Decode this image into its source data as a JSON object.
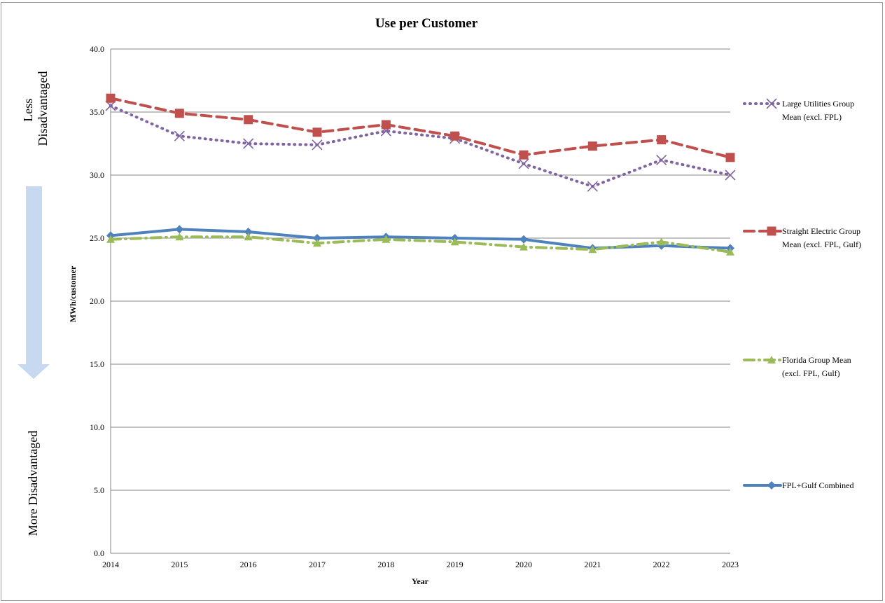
{
  "chart_data": {
    "type": "line",
    "title": "Use per Customer",
    "xlabel": "Year",
    "ylabel": "MWh/customer",
    "ylim": [
      0,
      40
    ],
    "yticks": [
      "0.0",
      "5.0",
      "10.0",
      "15.0",
      "20.0",
      "25.0",
      "30.0",
      "35.0",
      "40.0"
    ],
    "categories": [
      "2014",
      "2015",
      "2016",
      "2017",
      "2018",
      "2019",
      "2020",
      "2021",
      "2022",
      "2023"
    ],
    "grid": "horizontal",
    "legend_position": "right",
    "series": [
      {
        "name_lines": [
          "Large Utilities Group",
          "Mean (excl. FPL)"
        ],
        "color": "#8064a2",
        "style": "dotted",
        "marker": "x",
        "values": [
          35.5,
          33.1,
          32.5,
          32.4,
          33.5,
          32.9,
          30.9,
          29.1,
          31.2,
          30.0
        ]
      },
      {
        "name_lines": [
          "Straight Electric Group",
          "Mean (excl. FPL, Gulf)"
        ],
        "color": "#c0504d",
        "style": "dashed",
        "marker": "square",
        "values": [
          36.1,
          34.9,
          34.4,
          33.4,
          34.0,
          33.1,
          31.6,
          32.3,
          32.8,
          31.4
        ]
      },
      {
        "name_lines": [
          "Florida Group Mean",
          "(excl. FPL, Gulf)"
        ],
        "color": "#9bbb59",
        "style": "dashdot",
        "marker": "triangle",
        "values": [
          24.9,
          25.1,
          25.1,
          24.6,
          24.9,
          24.7,
          24.3,
          24.1,
          24.7,
          23.9
        ]
      },
      {
        "name_lines": [
          "FPL+Gulf Combined"
        ],
        "color": "#4f81bd",
        "style": "solid",
        "marker": "diamond",
        "values": [
          25.2,
          25.7,
          25.5,
          25.0,
          25.1,
          25.0,
          24.9,
          24.2,
          24.4,
          24.2
        ]
      }
    ]
  },
  "side_labels": {
    "top_lines": [
      "Less",
      "Disadvantaged"
    ],
    "bottom_prefix": "More ",
    "bottom_word": "Disadvantaged",
    "arrow_color": "#c6d9f1"
  }
}
